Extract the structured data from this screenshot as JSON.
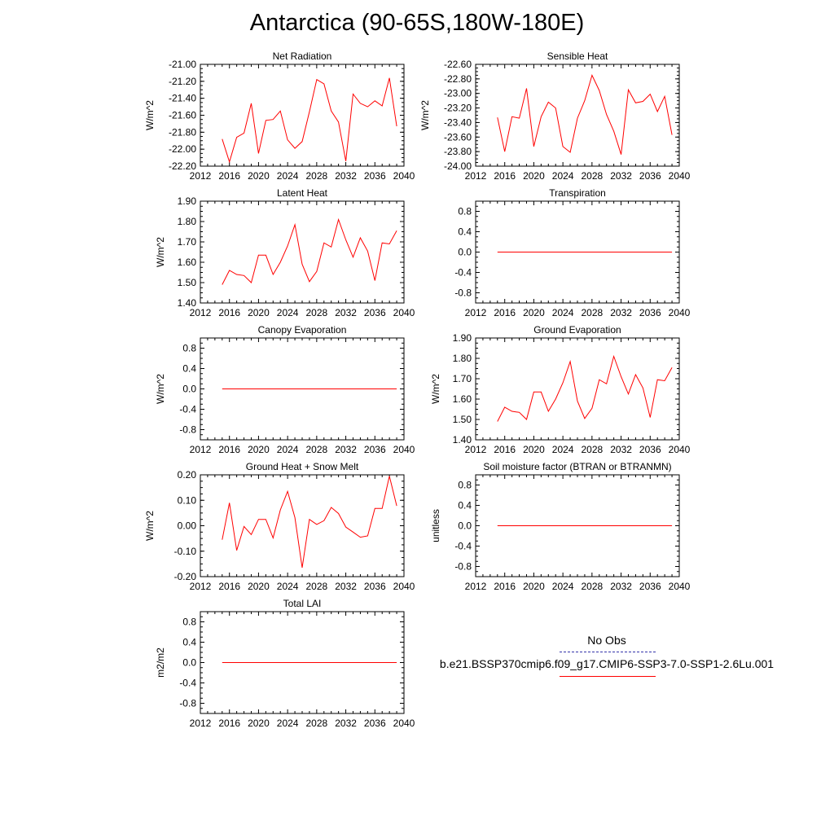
{
  "title": "Antarctica (90-65S,180W-180E)",
  "colors": {
    "model_line": "#ff0000",
    "obs_line": "#3333aa",
    "axis": "#000000"
  },
  "legend": {
    "obs_label": "No Obs",
    "model_label": "b.e21.BSSP370cmip6.f09_g17.CMIP6-SSP3-7.0-SSP1-2.6Lu.001"
  },
  "chart_data": [
    {
      "type": "line",
      "title": "Net Radiation",
      "ylabel": "W/m^2",
      "xlim": [
        2012,
        2040
      ],
      "ylim": [
        -22.2,
        -21.0
      ],
      "xticks": [
        "2012",
        "2016",
        "2020",
        "2024",
        "2028",
        "2032",
        "2036",
        "2040"
      ],
      "yticks": [
        "-22.20",
        "-22.00",
        "-21.80",
        "-21.60",
        "-21.40",
        "-21.20",
        "-21.00"
      ],
      "x": [
        2015,
        2016,
        2017,
        2018,
        2019,
        2020,
        2021,
        2022,
        2023,
        2024,
        2025,
        2026,
        2027,
        2028,
        2029,
        2030,
        2031,
        2032,
        2033,
        2034,
        2035,
        2036,
        2037,
        2038,
        2039
      ],
      "y": [
        -21.88,
        -22.15,
        -21.86,
        -21.81,
        -21.46,
        -22.05,
        -21.66,
        -21.65,
        -21.55,
        -21.89,
        -21.99,
        -21.91,
        -21.56,
        -21.18,
        -21.23,
        -21.55,
        -21.68,
        -22.14,
        -21.35,
        -21.46,
        -21.5,
        -21.43,
        -21.49,
        -21.16,
        -21.73
      ],
      "series_name": "b.e21.BSSP370cmip6.f09_g17.CMIP6-SSP3-7.0-SSP1-2.6Lu.001"
    },
    {
      "type": "line",
      "title": "Sensible Heat",
      "ylabel": "W/m^2",
      "xlim": [
        2012,
        2040
      ],
      "ylim": [
        -24.0,
        -22.6
      ],
      "xticks": [
        "2012",
        "2016",
        "2020",
        "2024",
        "2028",
        "2032",
        "2036",
        "2040"
      ],
      "yticks": [
        "-24.00",
        "-23.80",
        "-23.60",
        "-23.40",
        "-23.20",
        "-23.00",
        "-22.80",
        "-22.60"
      ],
      "x": [
        2015,
        2016,
        2017,
        2018,
        2019,
        2020,
        2021,
        2022,
        2023,
        2024,
        2025,
        2026,
        2027,
        2028,
        2029,
        2030,
        2031,
        2032,
        2033,
        2034,
        2035,
        2036,
        2037,
        2038,
        2039
      ],
      "y": [
        -23.33,
        -23.8,
        -23.32,
        -23.34,
        -22.93,
        -23.73,
        -23.32,
        -23.12,
        -23.2,
        -23.73,
        -23.81,
        -23.34,
        -23.1,
        -22.75,
        -22.96,
        -23.29,
        -23.52,
        -23.84,
        -22.95,
        -23.13,
        -23.11,
        -23.01,
        -23.25,
        -23.04,
        -23.57
      ],
      "series_name": "b.e21.BSSP370cmip6.f09_g17.CMIP6-SSP3-7.0-SSP1-2.6Lu.001"
    },
    {
      "type": "line",
      "title": "Latent Heat",
      "ylabel": "W/m^2",
      "xlim": [
        2012,
        2040
      ],
      "ylim": [
        1.4,
        1.9
      ],
      "xticks": [
        "2012",
        "2016",
        "2020",
        "2024",
        "2028",
        "2032",
        "2036",
        "2040"
      ],
      "yticks": [
        "1.40",
        "1.50",
        "1.60",
        "1.70",
        "1.80",
        "1.90"
      ],
      "x": [
        2015,
        2016,
        2017,
        2018,
        2019,
        2020,
        2021,
        2022,
        2023,
        2024,
        2025,
        2026,
        2027,
        2028,
        2029,
        2030,
        2031,
        2032,
        2033,
        2034,
        2035,
        2036,
        2037,
        2038,
        2039
      ],
      "y": [
        1.49,
        1.56,
        1.54,
        1.535,
        1.5,
        1.635,
        1.635,
        1.54,
        1.6,
        1.68,
        1.785,
        1.59,
        1.505,
        1.555,
        1.695,
        1.675,
        1.81,
        1.71,
        1.625,
        1.72,
        1.655,
        1.51,
        1.695,
        1.69,
        1.755
      ],
      "series_name": "b.e21.BSSP370cmip6.f09_g17.CMIP6-SSP3-7.0-SSP1-2.6Lu.001"
    },
    {
      "type": "line",
      "title": "Transpiration",
      "ylabel": "",
      "xlim": [
        2012,
        2040
      ],
      "ylim": [
        -1.0,
        1.0
      ],
      "xticks": [
        "2012",
        "2016",
        "2020",
        "2024",
        "2028",
        "2032",
        "2036",
        "2040"
      ],
      "yticks": [
        "-0.8",
        "-0.4",
        "0.0",
        "0.4",
        "0.8"
      ],
      "x": [
        2015,
        2039
      ],
      "y": [
        0.0,
        0.0
      ],
      "series_name": "b.e21.BSSP370cmip6.f09_g17.CMIP6-SSP3-7.0-SSP1-2.6Lu.001"
    },
    {
      "type": "line",
      "title": "Canopy Evaporation",
      "ylabel": "W/m^2",
      "xlim": [
        2012,
        2040
      ],
      "ylim": [
        -1.0,
        1.0
      ],
      "xticks": [
        "2012",
        "2016",
        "2020",
        "2024",
        "2028",
        "2032",
        "2036",
        "2040"
      ],
      "yticks": [
        "-0.8",
        "-0.4",
        "0.0",
        "0.4",
        "0.8"
      ],
      "x": [
        2015,
        2039
      ],
      "y": [
        0.0,
        0.0
      ],
      "series_name": "b.e21.BSSP370cmip6.f09_g17.CMIP6-SSP3-7.0-SSP1-2.6Lu.001"
    },
    {
      "type": "line",
      "title": "Ground Evaporation",
      "ylabel": "W/m^2",
      "xlim": [
        2012,
        2040
      ],
      "ylim": [
        1.4,
        1.9
      ],
      "xticks": [
        "2012",
        "2016",
        "2020",
        "2024",
        "2028",
        "2032",
        "2036",
        "2040"
      ],
      "yticks": [
        "1.40",
        "1.50",
        "1.60",
        "1.70",
        "1.80",
        "1.90"
      ],
      "x": [
        2015,
        2016,
        2017,
        2018,
        2019,
        2020,
        2021,
        2022,
        2023,
        2024,
        2025,
        2026,
        2027,
        2028,
        2029,
        2030,
        2031,
        2032,
        2033,
        2034,
        2035,
        2036,
        2037,
        2038,
        2039
      ],
      "y": [
        1.49,
        1.56,
        1.54,
        1.535,
        1.5,
        1.635,
        1.635,
        1.54,
        1.6,
        1.68,
        1.785,
        1.59,
        1.505,
        1.555,
        1.695,
        1.675,
        1.81,
        1.71,
        1.625,
        1.72,
        1.655,
        1.51,
        1.695,
        1.69,
        1.755
      ],
      "series_name": "b.e21.BSSP370cmip6.f09_g17.CMIP6-SSP3-7.0-SSP1-2.6Lu.001"
    },
    {
      "type": "line",
      "title": "Ground Heat + Snow Melt",
      "ylabel": "W/m^2",
      "xlim": [
        2012,
        2040
      ],
      "ylim": [
        -0.2,
        0.2
      ],
      "xticks": [
        "2012",
        "2016",
        "2020",
        "2024",
        "2028",
        "2032",
        "2036",
        "2040"
      ],
      "yticks": [
        "-0.20",
        "-0.10",
        "0.00",
        "0.10",
        "0.20"
      ],
      "x": [
        2015,
        2016,
        2017,
        2018,
        2019,
        2020,
        2021,
        2022,
        2023,
        2024,
        2025,
        2026,
        2027,
        2028,
        2029,
        2030,
        2031,
        2032,
        2033,
        2034,
        2035,
        2036,
        2037,
        2038,
        2039
      ],
      "y": [
        -0.055,
        0.09,
        -0.097,
        -0.003,
        -0.035,
        0.025,
        0.025,
        -0.048,
        0.062,
        0.135,
        0.032,
        -0.165,
        0.025,
        0.005,
        0.02,
        0.072,
        0.048,
        -0.005,
        -0.025,
        -0.045,
        -0.04,
        0.068,
        0.068,
        0.195,
        0.078
      ],
      "series_name": "b.e21.BSSP370cmip6.f09_g17.CMIP6-SSP3-7.0-SSP1-2.6Lu.001"
    },
    {
      "type": "line",
      "title": "Soil moisture factor (BTRAN or BTRANMN)",
      "ylabel": "unitless",
      "xlim": [
        2012,
        2040
      ],
      "ylim": [
        -1.0,
        1.0
      ],
      "xticks": [
        "2012",
        "2016",
        "2020",
        "2024",
        "2028",
        "2032",
        "2036",
        "2040"
      ],
      "yticks": [
        "-0.8",
        "-0.4",
        "0.0",
        "0.4",
        "0.8"
      ],
      "x": [
        2015,
        2039
      ],
      "y": [
        0.0,
        0.0
      ],
      "series_name": "b.e21.BSSP370cmip6.f09_g17.CMIP6-SSP3-7.0-SSP1-2.6Lu.001"
    },
    {
      "type": "line",
      "title": "Total LAI",
      "ylabel": "m2/m2",
      "xlim": [
        2012,
        2040
      ],
      "ylim": [
        -1.0,
        1.0
      ],
      "xticks": [
        "2012",
        "2016",
        "2020",
        "2024",
        "2028",
        "2032",
        "2036",
        "2040"
      ],
      "yticks": [
        "-0.8",
        "-0.4",
        "0.0",
        "0.4",
        "0.8"
      ],
      "x": [
        2015,
        2039
      ],
      "y": [
        0.0,
        0.0
      ],
      "series_name": "b.e21.BSSP370cmip6.f09_g17.CMIP6-SSP3-7.0-SSP1-2.6Lu.001"
    }
  ]
}
